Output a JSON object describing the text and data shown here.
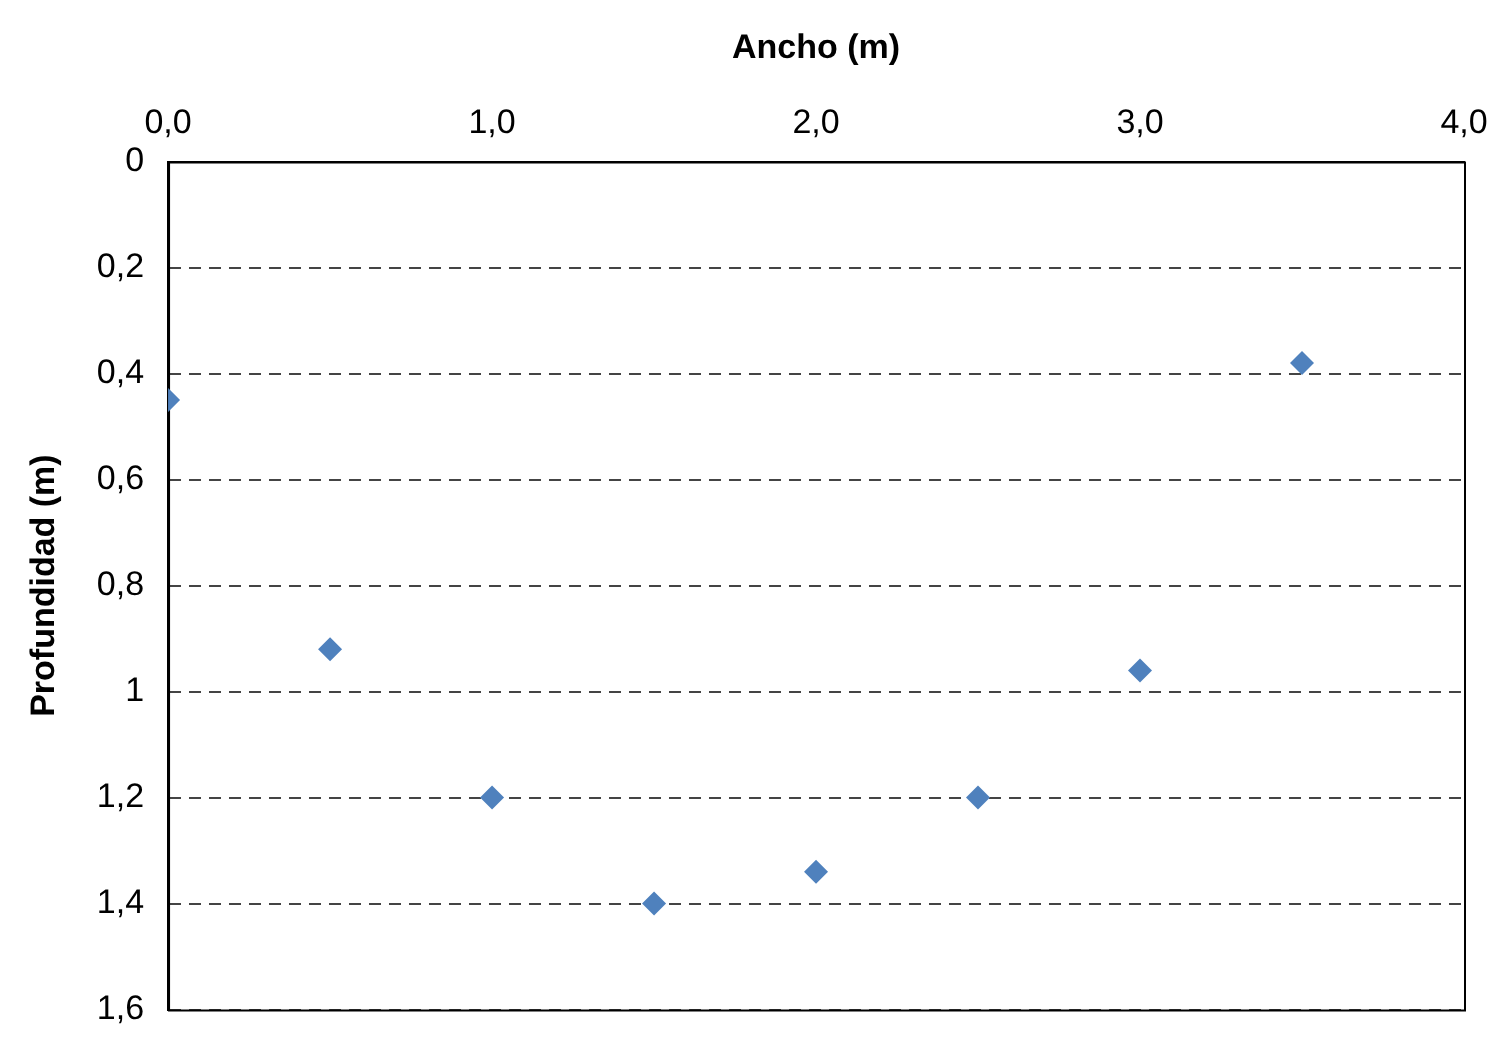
{
  "chart_data": {
    "type": "scatter",
    "xlabel": "Ancho (m)",
    "ylabel": "Profundidad (m)",
    "x": [
      0,
      0.5,
      1,
      1.5,
      2,
      2.5,
      3,
      3.5
    ],
    "series": [
      {
        "color": "#4f81bd",
        "values": [
          0.45,
          0.92,
          1.2,
          1.4,
          1.34,
          1.2,
          0.96,
          0.38
        ]
      }
    ],
    "xlim": [
      0,
      4
    ],
    "xticks": [
      {
        "value": 0,
        "label": "0,0"
      },
      {
        "value": 1,
        "label": "1,0"
      },
      {
        "value": 2,
        "label": "2,0"
      },
      {
        "value": 3,
        "label": "3,0"
      },
      {
        "value": 4,
        "label": "4,0"
      }
    ],
    "ylim": [
      1.6,
      0
    ],
    "yticks": [
      0,
      {
        "value": 0.2,
        "label": "0,2"
      },
      {
        "value": 0.4,
        "label": "0,4"
      },
      {
        "value": 0.6,
        "label": "0,6"
      },
      {
        "value": 0.8,
        "label": "0,8"
      },
      1,
      {
        "value": 1.2,
        "label": "1,2"
      },
      {
        "value": 1.4,
        "label": "1,4"
      },
      {
        "value": 1.6,
        "label": "1,6"
      }
    ],
    "grid": "y",
    "marker": "diamond",
    "legend": false
  }
}
